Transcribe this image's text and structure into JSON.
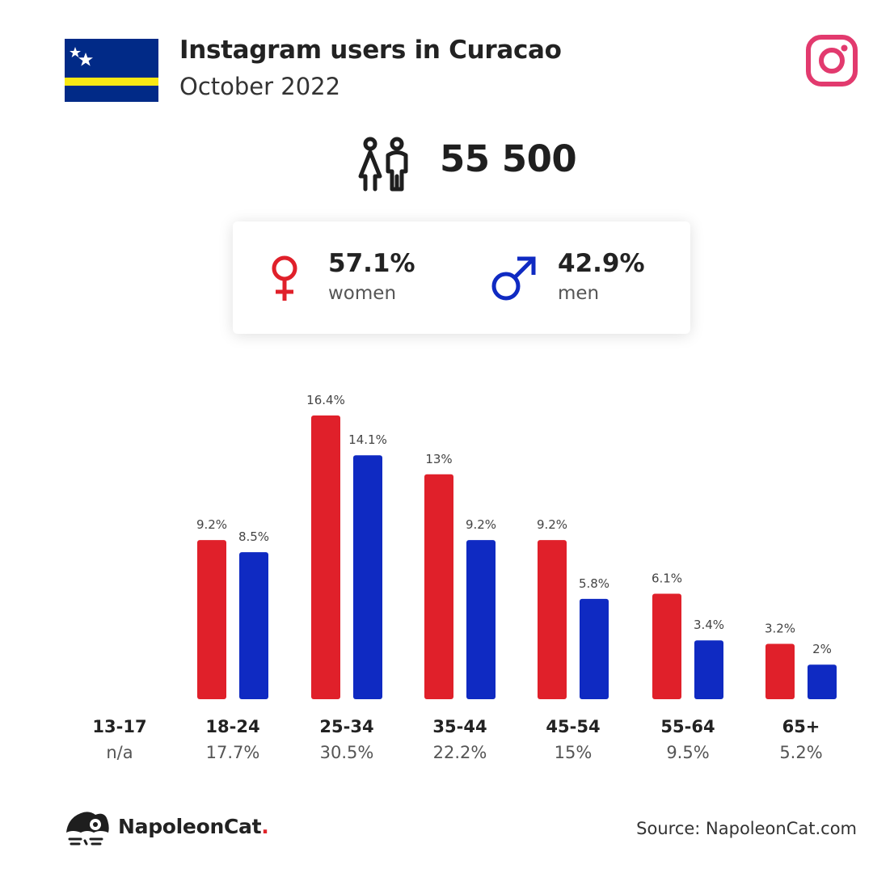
{
  "header": {
    "title": "Instagram users in Curacao",
    "subtitle": "October 2022"
  },
  "total_users": "55 500",
  "gender": {
    "women": {
      "percent": "57.1%",
      "label": "women"
    },
    "men": {
      "percent": "42.9%",
      "label": "men"
    }
  },
  "colors": {
    "women": "#e0202a",
    "men": "#0f2ac2",
    "instagram": "#e23a6e",
    "flag_blue": "#012a87",
    "flag_yellow": "#f9e814"
  },
  "chart_data": {
    "type": "bar",
    "categories": [
      "13-17",
      "18-24",
      "25-34",
      "35-44",
      "45-54",
      "55-64",
      "65+"
    ],
    "category_totals": [
      "n/a",
      "17.7%",
      "30.5%",
      "22.2%",
      "15%",
      "9.5%",
      "5.2%"
    ],
    "series": [
      {
        "name": "women",
        "values": [
          null,
          9.2,
          16.4,
          13,
          9.2,
          6.1,
          3.2
        ],
        "labels": [
          "",
          "9.2%",
          "16.4%",
          "13%",
          "9.2%",
          "6.1%",
          "3.2%"
        ]
      },
      {
        "name": "men",
        "values": [
          null,
          8.5,
          14.1,
          9.2,
          5.8,
          3.4,
          2
        ],
        "labels": [
          "",
          "8.5%",
          "14.1%",
          "9.2%",
          "5.8%",
          "3.4%",
          "2%"
        ]
      }
    ],
    "ylim": [
      0,
      16.4
    ],
    "grid": false,
    "legend": "none"
  },
  "footer": {
    "brand": "NapoleonCat",
    "brand_dot": ".",
    "source": "Source: NapoleonCat.com"
  }
}
